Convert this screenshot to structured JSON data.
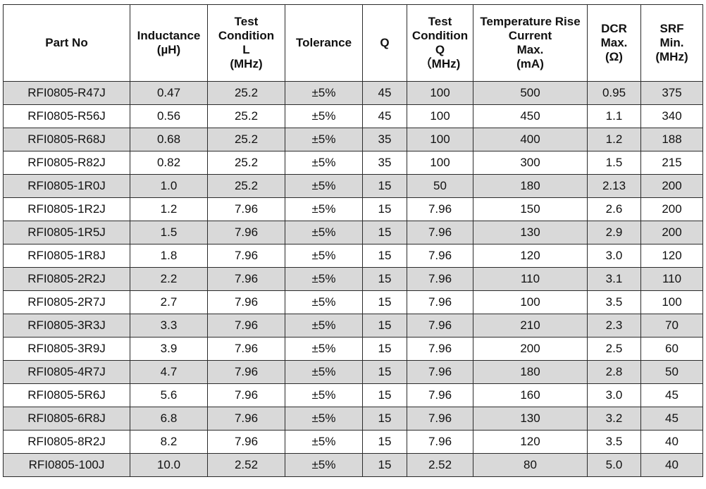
{
  "table": {
    "headers": [
      [
        "Part No"
      ],
      [
        "Inductance",
        "(µH)"
      ],
      [
        "Test",
        "Condition",
        "L",
        "(MHz)"
      ],
      [
        "Tolerance"
      ],
      [
        "Q"
      ],
      [
        "Test",
        "Condition",
        "Q",
        "（MHz)"
      ],
      [
        "Temperature Rise",
        "Current",
        "Max.",
        "(mA)"
      ],
      [
        "DCR",
        "Max.",
        "(Ω)"
      ],
      [
        "SRF",
        "Min.",
        "(MHz)"
      ]
    ],
    "rows": [
      [
        "RFI0805-R47J",
        "0.47",
        "25.2",
        "±5%",
        "45",
        "100",
        "500",
        "0.95",
        "375"
      ],
      [
        "RFI0805-R56J",
        "0.56",
        "25.2",
        "±5%",
        "45",
        "100",
        "450",
        "1.1",
        "340"
      ],
      [
        "RFI0805-R68J",
        "0.68",
        "25.2",
        "±5%",
        "35",
        "100",
        "400",
        "1.2",
        "188"
      ],
      [
        "RFI0805-R82J",
        "0.82",
        "25.2",
        "±5%",
        "35",
        "100",
        "300",
        "1.5",
        "215"
      ],
      [
        "RFI0805-1R0J",
        "1.0",
        "25.2",
        "±5%",
        "15",
        "50",
        "180",
        "2.13",
        "200"
      ],
      [
        "RFI0805-1R2J",
        "1.2",
        "7.96",
        "±5%",
        "15",
        "7.96",
        "150",
        "2.6",
        "200"
      ],
      [
        "RFI0805-1R5J",
        "1.5",
        "7.96",
        "±5%",
        "15",
        "7.96",
        "130",
        "2.9",
        "200"
      ],
      [
        "RFI0805-1R8J",
        "1.8",
        "7.96",
        "±5%",
        "15",
        "7.96",
        "120",
        "3.0",
        "120"
      ],
      [
        "RFI0805-2R2J",
        "2.2",
        "7.96",
        "±5%",
        "15",
        "7.96",
        "110",
        "3.1",
        "110"
      ],
      [
        "RFI0805-2R7J",
        "2.7",
        "7.96",
        "±5%",
        "15",
        "7.96",
        "100",
        "3.5",
        "100"
      ],
      [
        "RFI0805-3R3J",
        "3.3",
        "7.96",
        "±5%",
        "15",
        "7.96",
        "210",
        "2.3",
        "70"
      ],
      [
        "RFI0805-3R9J",
        "3.9",
        "7.96",
        "±5%",
        "15",
        "7.96",
        "200",
        "2.5",
        "60"
      ],
      [
        "RFI0805-4R7J",
        "4.7",
        "7.96",
        "±5%",
        "15",
        "7.96",
        "180",
        "2.8",
        "50"
      ],
      [
        "RFI0805-5R6J",
        "5.6",
        "7.96",
        "±5%",
        "15",
        "7.96",
        "160",
        "3.0",
        "45"
      ],
      [
        "RFI0805-6R8J",
        "6.8",
        "7.96",
        "±5%",
        "15",
        "7.96",
        "130",
        "3.2",
        "45"
      ],
      [
        "RFI0805-8R2J",
        "8.2",
        "7.96",
        "±5%",
        "15",
        "7.96",
        "120",
        "3.5",
        "40"
      ],
      [
        "RFI0805-100J",
        "10.0",
        "2.52",
        "±5%",
        "15",
        "2.52",
        "80",
        "5.0",
        "40"
      ]
    ]
  }
}
